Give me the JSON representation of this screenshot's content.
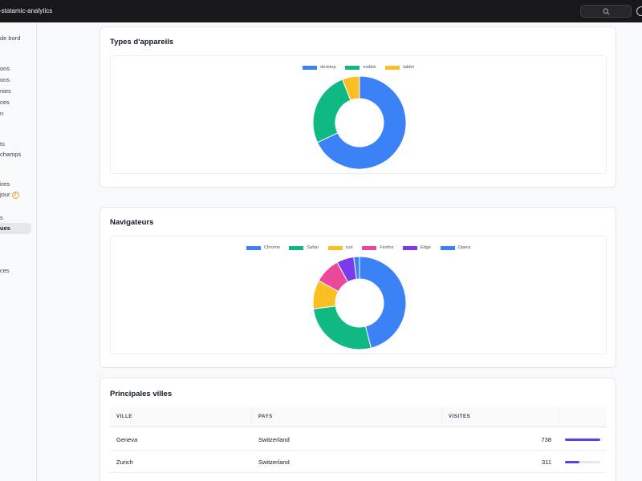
{
  "topbar": {
    "site_title": "-statamic-analytics"
  },
  "sidebar": {
    "items": [
      {
        "label": "de bord"
      },
      {
        "label": "ons"
      },
      {
        "label": "ons"
      },
      {
        "label": "nies"
      },
      {
        "label": "ces"
      },
      {
        "label": "n"
      },
      {
        "label": "ts"
      },
      {
        "label": "champs"
      },
      {
        "label": "ires"
      },
      {
        "label": "jour",
        "badge": "0"
      },
      {
        "label": "s"
      },
      {
        "label": "ues"
      },
      {
        "label": "ces"
      }
    ]
  },
  "devices_card": {
    "title": "Types d'appareils",
    "chart_data": {
      "type": "pie",
      "variant": "donut",
      "categories": [
        "desktop",
        "mobile",
        "tablet"
      ],
      "values": [
        68,
        26,
        6
      ],
      "colors": [
        "#3b82f6",
        "#10b981",
        "#fbbf24"
      ],
      "legend": "top"
    }
  },
  "browsers_card": {
    "title": "Navigateurs",
    "chart_data": {
      "type": "pie",
      "variant": "donut",
      "categories": [
        "Chrome",
        "Safari",
        "curl",
        "Firefox",
        "Edge",
        "Opera"
      ],
      "values": [
        46,
        27,
        10,
        9,
        6,
        2
      ],
      "colors": [
        "#3b82f6",
        "#10b981",
        "#fbbf24",
        "#ec4899",
        "#7c3aed",
        "#3b82f6"
      ],
      "legend": "top"
    }
  },
  "cities_card": {
    "title": "Principales villes",
    "columns": [
      "VILLE",
      "PAYS",
      "VISITES"
    ],
    "rows": [
      {
        "city": "Geneva",
        "country": "Switzerland",
        "visits": "738",
        "share": 1.0
      },
      {
        "city": "Zurich",
        "country": "Switzerland",
        "visits": "311",
        "share": 0.42
      }
    ],
    "bar_color": "#4f46e5"
  }
}
